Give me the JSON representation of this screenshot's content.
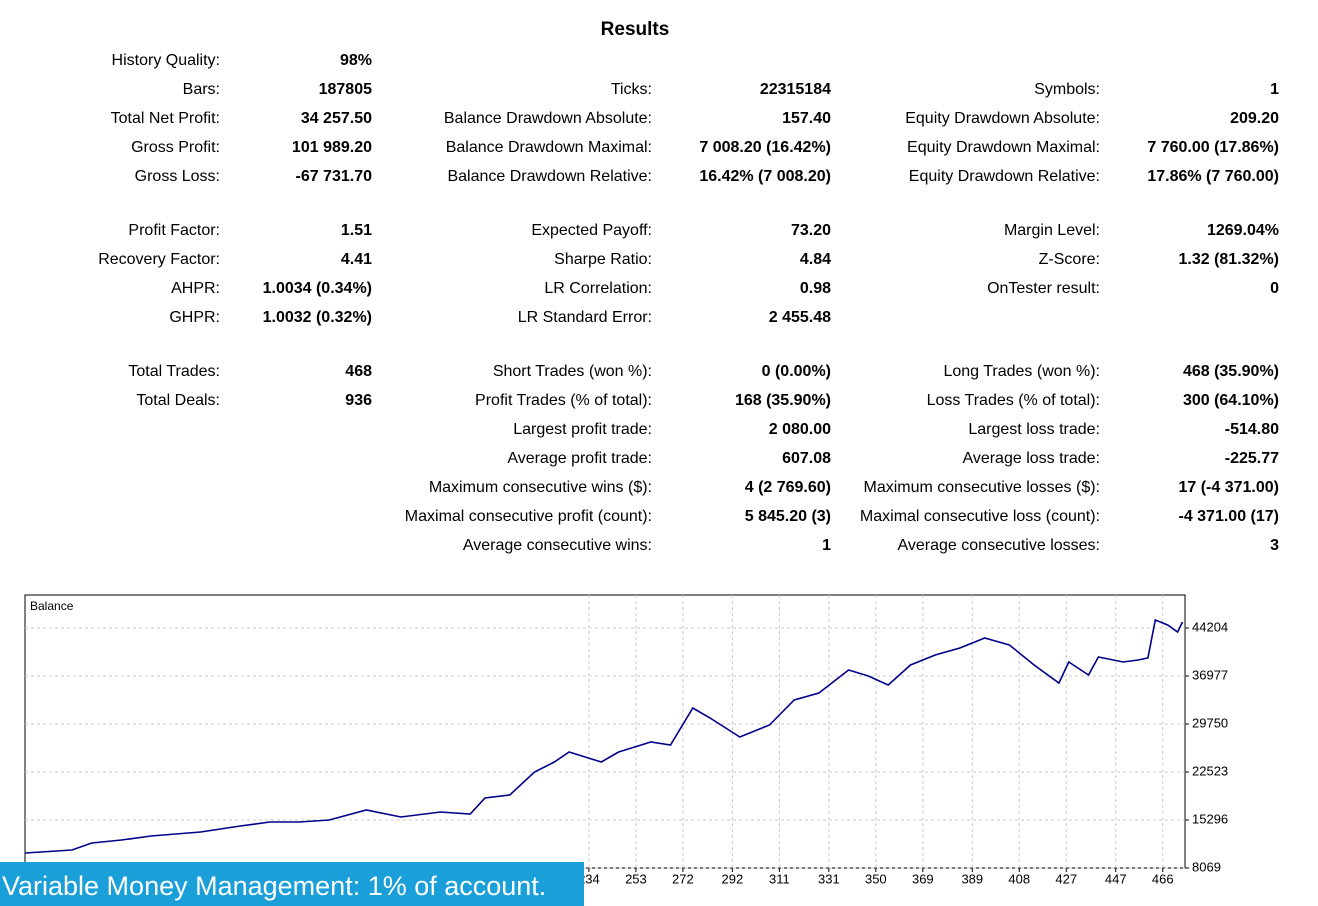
{
  "header": {
    "title": "Results"
  },
  "sections": [
    [
      [
        {
          "label": "History Quality:",
          "value": "98%"
        },
        null,
        null
      ],
      [
        {
          "label": "Bars:",
          "value": "187805"
        },
        {
          "label": "Ticks:",
          "value": "22315184"
        },
        {
          "label": "Symbols:",
          "value": "1"
        }
      ],
      [
        {
          "label": "Total Net Profit:",
          "value": "34 257.50"
        },
        {
          "label": "Balance Drawdown Absolute:",
          "value": "157.40"
        },
        {
          "label": "Equity Drawdown Absolute:",
          "value": "209.20"
        }
      ],
      [
        {
          "label": "Gross Profit:",
          "value": "101 989.20"
        },
        {
          "label": "Balance Drawdown Maximal:",
          "value": "7 008.20 (16.42%)"
        },
        {
          "label": "Equity Drawdown Maximal:",
          "value": "7 760.00 (17.86%)"
        }
      ],
      [
        {
          "label": "Gross Loss:",
          "value": "-67 731.70"
        },
        {
          "label": "Balance Drawdown Relative:",
          "value": "16.42% (7 008.20)"
        },
        {
          "label": "Equity Drawdown Relative:",
          "value": "17.86% (7 760.00)"
        }
      ]
    ],
    [
      [
        {
          "label": "Profit Factor:",
          "value": "1.51"
        },
        {
          "label": "Expected Payoff:",
          "value": "73.20"
        },
        {
          "label": "Margin Level:",
          "value": "1269.04%"
        }
      ],
      [
        {
          "label": "Recovery Factor:",
          "value": "4.41"
        },
        {
          "label": "Sharpe Ratio:",
          "value": "4.84"
        },
        {
          "label": "Z-Score:",
          "value": "1.32 (81.32%)"
        }
      ],
      [
        {
          "label": "AHPR:",
          "value": "1.0034 (0.34%)"
        },
        {
          "label": "LR Correlation:",
          "value": "0.98"
        },
        {
          "label": "OnTester result:",
          "value": "0"
        }
      ],
      [
        {
          "label": "GHPR:",
          "value": "1.0032 (0.32%)"
        },
        {
          "label": "LR Standard Error:",
          "value": "2 455.48"
        },
        null
      ]
    ],
    [
      [
        {
          "label": "Total Trades:",
          "value": "468"
        },
        {
          "label": "Short Trades (won %):",
          "value": "0 (0.00%)"
        },
        {
          "label": "Long Trades (won %):",
          "value": "468 (35.90%)"
        }
      ],
      [
        {
          "label": "Total Deals:",
          "value": "936"
        },
        {
          "label": "Profit Trades (% of total):",
          "value": "168 (35.90%)"
        },
        {
          "label": "Loss Trades (% of total):",
          "value": "300 (64.10%)"
        }
      ],
      [
        null,
        {
          "label": "Largest profit trade:",
          "value": "2 080.00"
        },
        {
          "label": "Largest loss trade:",
          "value": "-514.80"
        }
      ],
      [
        null,
        {
          "label": "Average profit trade:",
          "value": "607.08"
        },
        {
          "label": "Average loss trade:",
          "value": "-225.77"
        }
      ],
      [
        null,
        {
          "label": "Maximum consecutive wins ($):",
          "value": "4 (2 769.60)"
        },
        {
          "label": "Maximum consecutive losses ($):",
          "value": "17 (-4 371.00)"
        }
      ],
      [
        null,
        {
          "label": "Maximal consecutive profit (count):",
          "value": "5 845.20 (3)"
        },
        {
          "label": "Maximal consecutive loss (count):",
          "value": "-4 371.00 (17)"
        }
      ],
      [
        null,
        {
          "label": "Average consecutive wins:",
          "value": "1"
        },
        {
          "label": "Average consecutive losses:",
          "value": "3"
        }
      ]
    ]
  ],
  "chart_data": {
    "type": "line",
    "title": "Balance",
    "color": "#00008b",
    "grid": true,
    "x": [
      6,
      25,
      33,
      45,
      57,
      77,
      93,
      105,
      117,
      129,
      144,
      158,
      174,
      186,
      192,
      202,
      212,
      220,
      226,
      239,
      246,
      259,
      267,
      276,
      283,
      295,
      307,
      317,
      327,
      339,
      347,
      355,
      364,
      374,
      384,
      394,
      404,
      414,
      424,
      428,
      436,
      440,
      450,
      456,
      460,
      463,
      468,
      472,
      474
    ],
    "values": [
      10327,
      10779,
      11833,
      12285,
      12887,
      13489,
      14392,
      14995,
      14995,
      15296,
      16802,
      15748,
      16500,
      16199,
      18608,
      19060,
      22523,
      24029,
      25534,
      24029,
      25534,
      27040,
      26588,
      32158,
      30653,
      27792,
      29599,
      33363,
      34417,
      37880,
      36977,
      35622,
      38633,
      40138,
      41192,
      42698,
      41644,
      38633,
      35923,
      39085,
      37127,
      39837,
      39085,
      39386,
      39687,
      45409,
      44656,
      43602,
      45108
    ],
    "xlim": [
      6,
      475
    ],
    "ylim": [
      8069,
      49172
    ],
    "xticks": [
      234,
      253,
      272,
      292,
      311,
      331,
      350,
      369,
      389,
      408,
      427,
      447,
      466
    ],
    "yticks": [
      8069,
      15296,
      22523,
      29750,
      36977,
      44204
    ]
  },
  "banner": "Variable Money Management: 1% of account."
}
